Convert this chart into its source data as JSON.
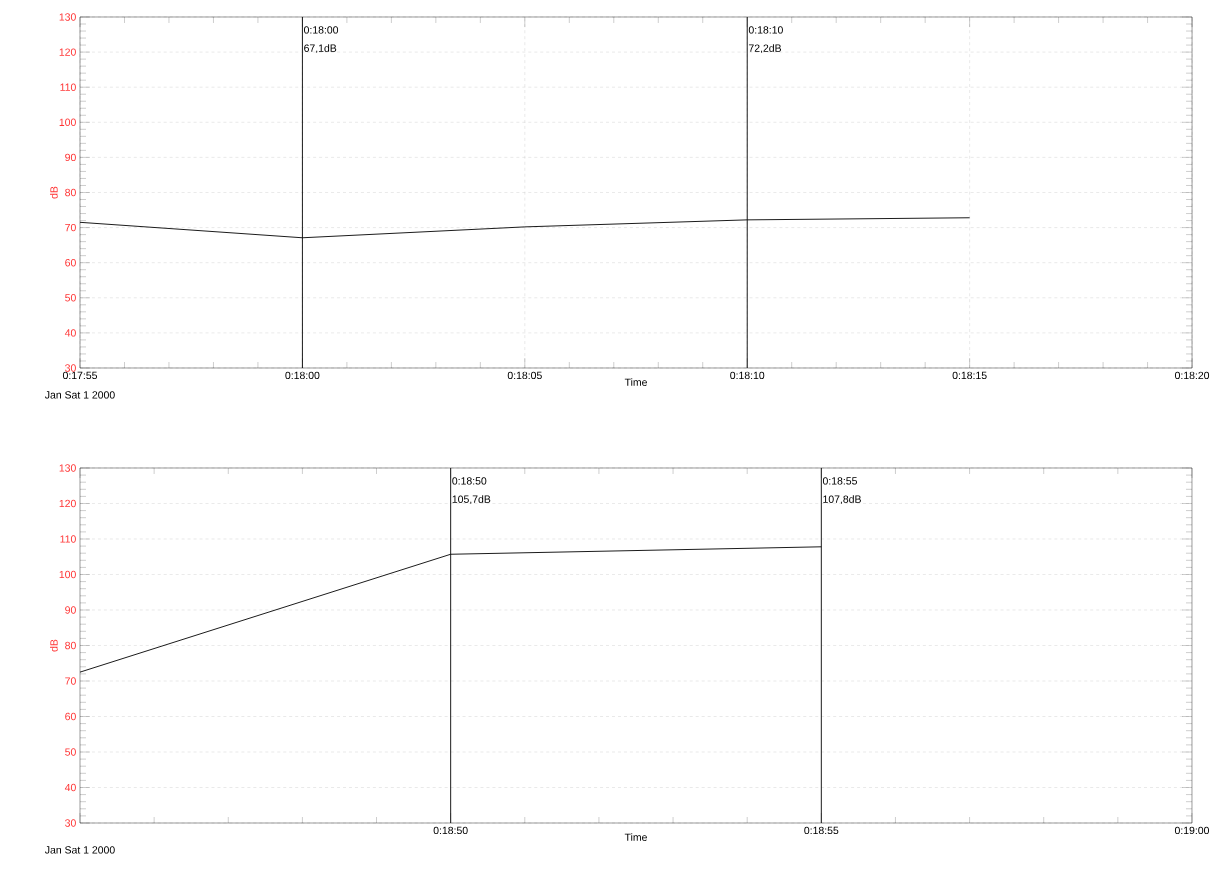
{
  "chart_data": [
    {
      "type": "line",
      "xlabel": "Time",
      "ylabel": "dB",
      "x": [
        0.298611,
        0.3,
        0.301389,
        0.302778,
        0.304167
      ],
      "series": [
        {
          "color": "#000000",
          "values": [
            71.5,
            67.1,
            70.2,
            72.2,
            72.8
          ]
        }
      ],
      "xlim": [
        0.298611,
        0.305556
      ],
      "xticks": [
        {
          "value": 0.298611,
          "label": "0:17:55"
        },
        {
          "value": 0.3,
          "label": "0:18:00"
        },
        {
          "value": 0.301389,
          "label": "0:18:05"
        },
        {
          "value": 0.302778,
          "label": "0:18:10"
        },
        {
          "value": 0.304167,
          "label": "0:18:15"
        },
        {
          "value": 0.305556,
          "label": "0:18:20"
        }
      ],
      "ylim": [
        30,
        130
      ],
      "yticks": [
        30,
        40,
        50,
        60,
        70,
        80,
        90,
        100,
        110,
        120,
        130
      ],
      "grid": true,
      "ref_lines": [
        {
          "axis": "x",
          "value": 0.3,
          "label": "0:18:00",
          "color": "#000000"
        },
        {
          "axis": "x",
          "value": 0.302778,
          "label": "0:18:10",
          "color": "#000000"
        }
      ],
      "annotations": [
        "Jan Sat 1 2000",
        "67,1dB",
        "72,2dB"
      ]
    },
    {
      "type": "line",
      "xlabel": "Time",
      "ylabel": "dB",
      "x": [
        0.3125,
        0.313889,
        0.315278
      ],
      "series": [
        {
          "color": "#000000",
          "values": [
            72.5,
            105.7,
            107.8
          ]
        }
      ],
      "xlim": [
        0.3125,
        0.316667
      ],
      "xticks": [
        {
          "value": 0.3125,
          "label": null
        },
        {
          "value": 0.313889,
          "label": "0:18:50"
        },
        {
          "value": 0.315278,
          "label": "0:18:55"
        },
        {
          "value": 0.316667,
          "label": "0:19:00"
        }
      ],
      "ylim": [
        30,
        130
      ],
      "yticks": [
        30,
        40,
        50,
        60,
        70,
        80,
        90,
        100,
        110,
        120,
        130
      ],
      "grid": "y",
      "ref_lines": [
        {
          "axis": "x",
          "value": 0.313889,
          "label": "0:18:50",
          "color": "#000000"
        },
        {
          "axis": "x",
          "value": 0.315278,
          "label": "0:18:55",
          "color": "#000000"
        }
      ],
      "annotations": [
        "Jan Sat 1 2000",
        "105,7dB",
        "107,8dB"
      ]
    }
  ]
}
